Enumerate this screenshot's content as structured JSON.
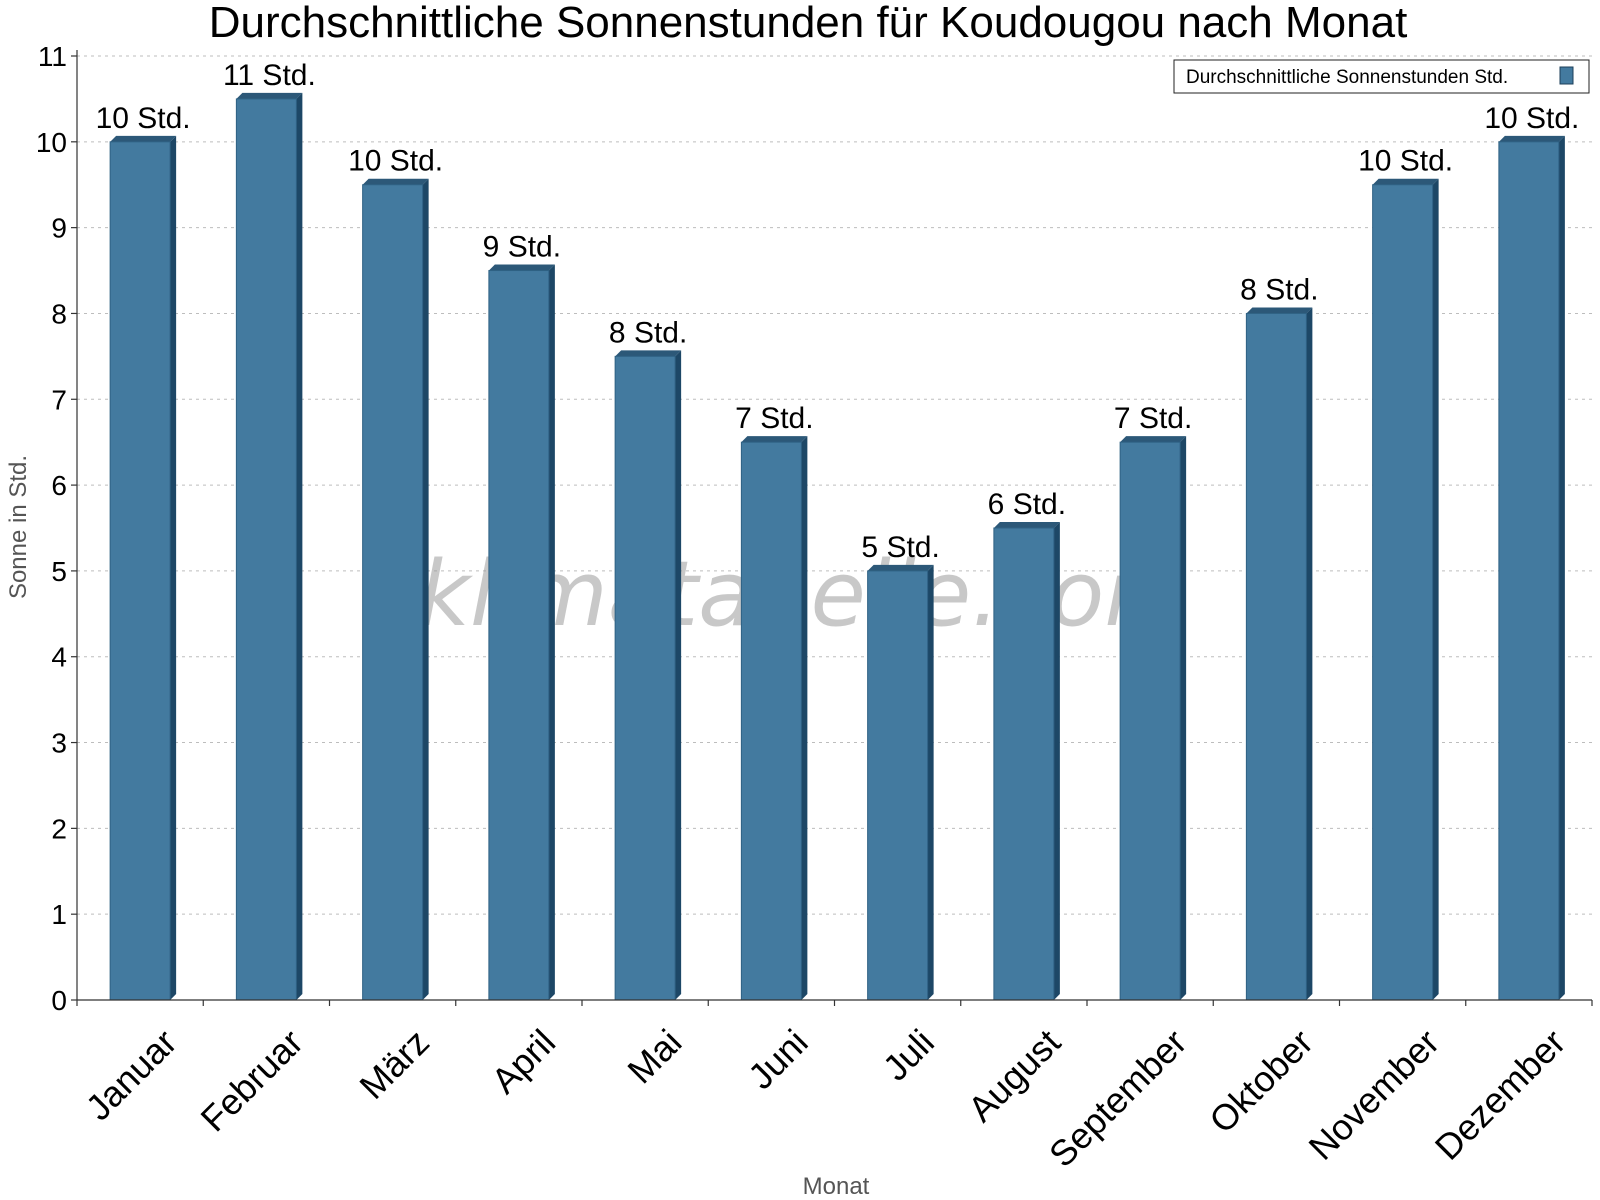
{
  "chart_data": {
    "type": "bar",
    "title": "Durchschnittliche Sonnenstunden für Koudougou nach Monat",
    "xlabel": "Monat",
    "ylabel": "Sonne in Std.",
    "ylim": [
      0,
      11
    ],
    "yticks": [
      0,
      1,
      2,
      3,
      4,
      5,
      6,
      7,
      8,
      9,
      10,
      11
    ],
    "grid": true,
    "legend_position": "top-right",
    "categories": [
      "Januar",
      "Februar",
      "März",
      "April",
      "Mai",
      "Juni",
      "Juli",
      "August",
      "September",
      "Oktober",
      "November",
      "Dezember"
    ],
    "series": [
      {
        "name": "Durchschnittliche Sonnenstunden Std.",
        "color": "#437a9f",
        "values": [
          10,
          10.5,
          9.5,
          8.5,
          7.5,
          6.5,
          5,
          5.5,
          6.5,
          8,
          9.5,
          10
        ],
        "data_labels": [
          "10 Std.",
          "11 Std.",
          "10 Std.",
          "9 Std.",
          "8 Std.",
          "7 Std.",
          "5 Std.",
          "6 Std.",
          "7 Std.",
          "8 Std.",
          "10 Std.",
          "10 Std."
        ]
      }
    ],
    "watermark": "klimatabelle.com"
  }
}
